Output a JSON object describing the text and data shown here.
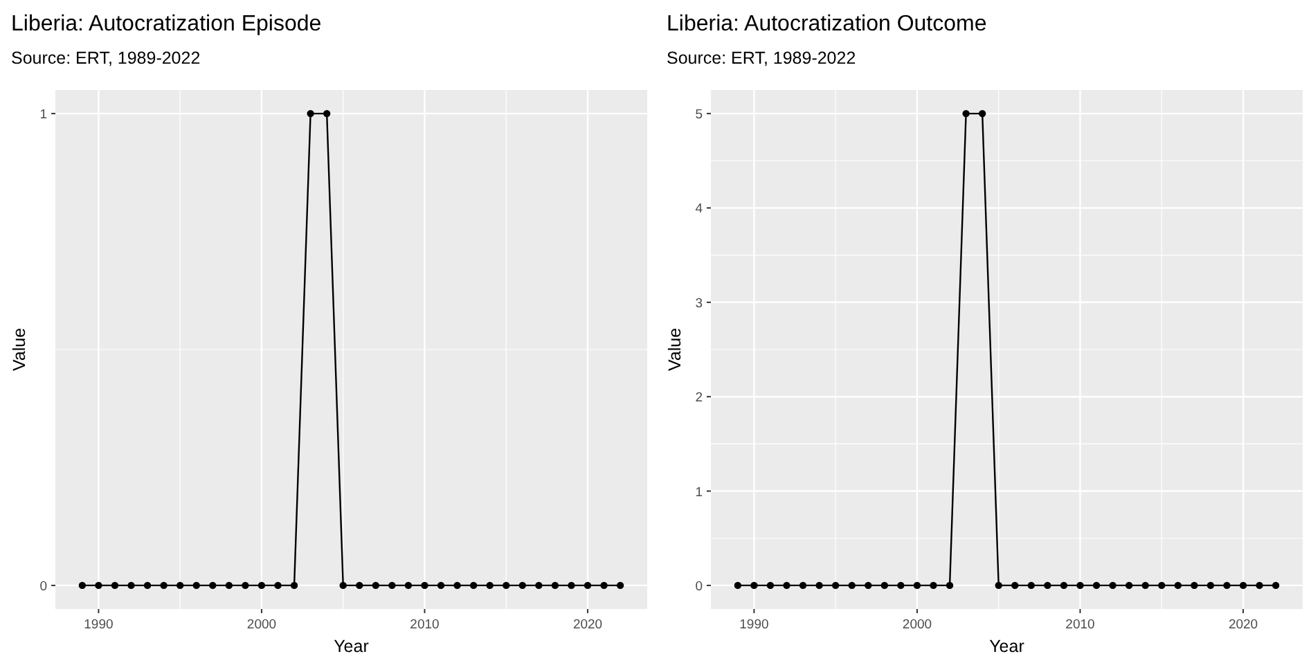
{
  "chart_data": [
    {
      "type": "line",
      "title": "Liberia: Autocratization Episode",
      "subtitle": "Source: ERT, 1989-2022",
      "xlabel": "Year",
      "ylabel": "Value",
      "x": [
        1989,
        1990,
        1991,
        1992,
        1993,
        1994,
        1995,
        1996,
        1997,
        1998,
        1999,
        2000,
        2001,
        2002,
        2003,
        2004,
        2005,
        2006,
        2007,
        2008,
        2009,
        2010,
        2011,
        2012,
        2013,
        2014,
        2015,
        2016,
        2017,
        2018,
        2019,
        2020,
        2021,
        2022
      ],
      "series": [
        {
          "color": "#000000",
          "values": [
            0,
            0,
            0,
            0,
            0,
            0,
            0,
            0,
            0,
            0,
            0,
            0,
            0,
            0,
            1,
            1,
            0,
            0,
            0,
            0,
            0,
            0,
            0,
            0,
            0,
            0,
            0,
            0,
            0,
            0,
            0,
            0,
            0,
            0
          ]
        }
      ],
      "xlim": [
        1987.35,
        2023.65
      ],
      "xticks": [
        1990,
        2000,
        2010,
        2020
      ],
      "ylim": [
        -0.05,
        1.05
      ],
      "yticks": [
        0,
        1
      ],
      "grid": true,
      "marker": "circle"
    },
    {
      "type": "line",
      "title": "Liberia: Autocratization Outcome",
      "subtitle": "Source: ERT, 1989-2022",
      "xlabel": "Year",
      "ylabel": "Value",
      "x": [
        1989,
        1990,
        1991,
        1992,
        1993,
        1994,
        1995,
        1996,
        1997,
        1998,
        1999,
        2000,
        2001,
        2002,
        2003,
        2004,
        2005,
        2006,
        2007,
        2008,
        2009,
        2010,
        2011,
        2012,
        2013,
        2014,
        2015,
        2016,
        2017,
        2018,
        2019,
        2020,
        2021,
        2022
      ],
      "series": [
        {
          "color": "#000000",
          "values": [
            0,
            0,
            0,
            0,
            0,
            0,
            0,
            0,
            0,
            0,
            0,
            0,
            0,
            0,
            5,
            5,
            0,
            0,
            0,
            0,
            0,
            0,
            0,
            0,
            0,
            0,
            0,
            0,
            0,
            0,
            0,
            0,
            0,
            0
          ]
        }
      ],
      "xlim": [
        1987.35,
        2023.65
      ],
      "xticks": [
        1990,
        2000,
        2010,
        2020
      ],
      "ylim": [
        -0.25,
        5.25
      ],
      "yticks": [
        0,
        1,
        2,
        3,
        4,
        5
      ],
      "grid": true,
      "marker": "circle"
    }
  ]
}
